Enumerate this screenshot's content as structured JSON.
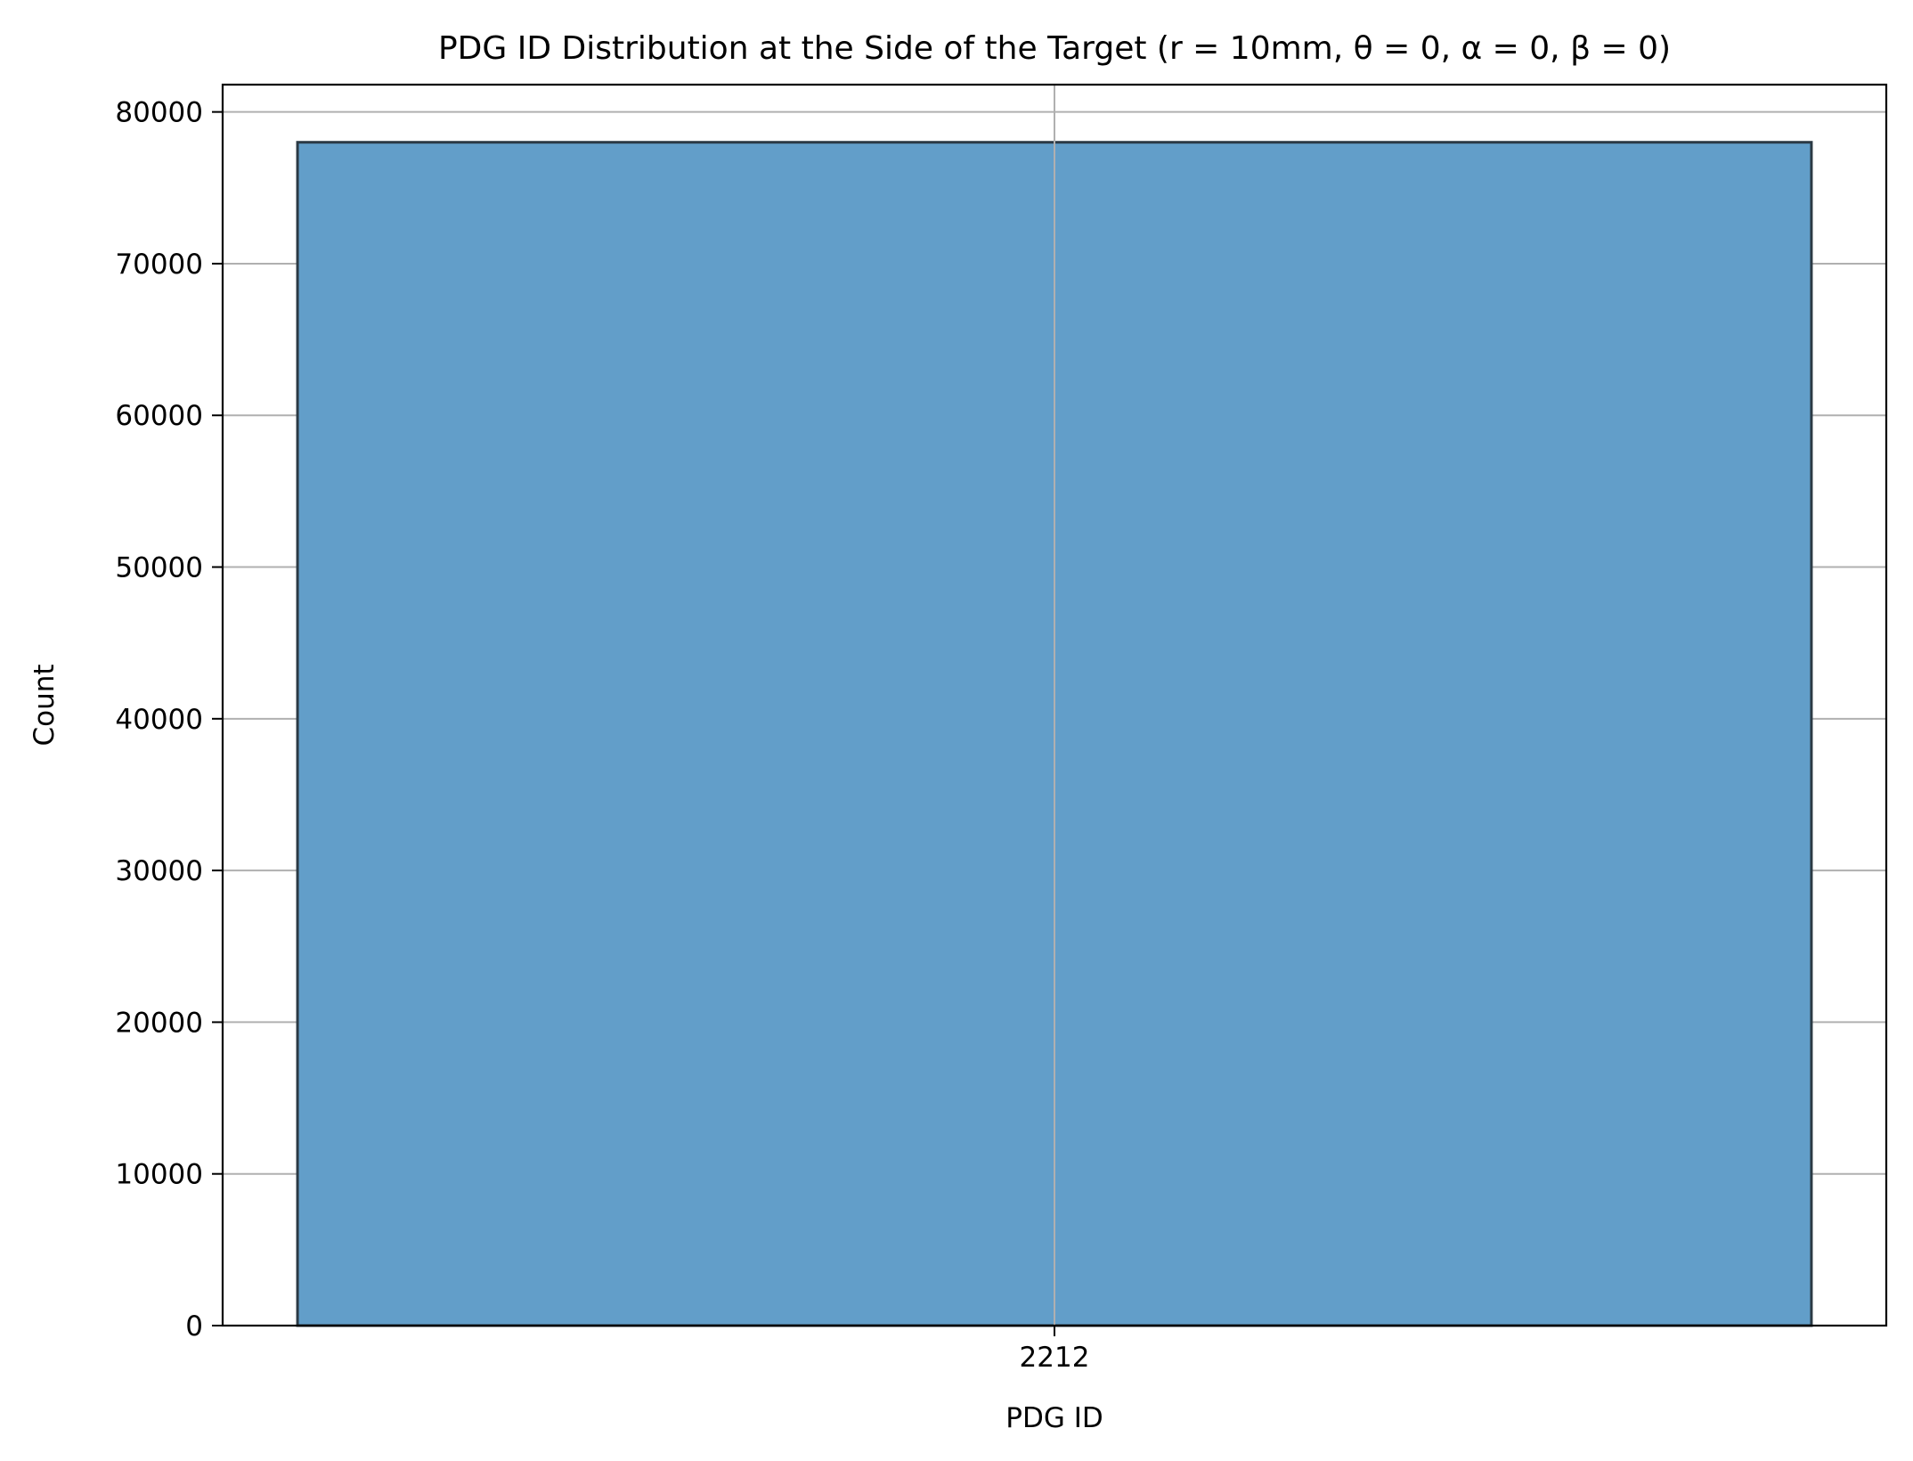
{
  "chart_data": {
    "type": "bar",
    "title": "PDG ID Distribution at the Side of the Target (r = 10mm, θ = 0, α = 0, β = 0)",
    "xlabel": "PDG ID",
    "ylabel": "Count",
    "categories": [
      "2212"
    ],
    "values": [
      78000
    ],
    "ylim": [
      0,
      81800
    ],
    "yticks": [
      0,
      10000,
      20000,
      30000,
      40000,
      50000,
      60000,
      70000,
      80000
    ],
    "ytick_labels": [
      "0",
      "10000",
      "20000",
      "30000",
      "40000",
      "50000",
      "60000",
      "70000",
      "80000"
    ],
    "grid": true,
    "legend": "none",
    "colors": {
      "bar_fill": "#629ec9",
      "bar_edge": "#2b3a45",
      "grid": "#b0b0b0",
      "axes": "#000000"
    }
  }
}
